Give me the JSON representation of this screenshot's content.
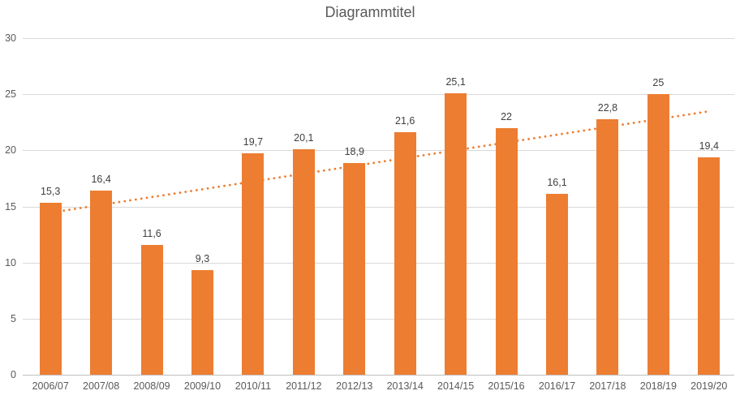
{
  "chart_data": {
    "type": "bar",
    "title": "Diagrammtitel",
    "categories": [
      "2006/07",
      "2007/08",
      "2008/09",
      "2009/10",
      "2010/11",
      "2011/12",
      "2012/13",
      "2013/14",
      "2014/15",
      "2015/16",
      "2016/17",
      "2017/18",
      "2018/19",
      "2019/20"
    ],
    "values": [
      15.3,
      16.4,
      11.6,
      9.3,
      19.7,
      20.1,
      18.9,
      21.6,
      25.1,
      22,
      16.1,
      22.8,
      25,
      19.4
    ],
    "value_labels": [
      "15,3",
      "16,4",
      "11,6",
      "9,3",
      "19,7",
      "20,1",
      "18,9",
      "21,6",
      "25,1",
      "22",
      "16,1",
      "22,8",
      "25",
      "19,4"
    ],
    "xlabel": "",
    "ylabel": "",
    "ylim": [
      0,
      30
    ],
    "yticks": [
      0,
      5,
      10,
      15,
      20,
      25,
      30
    ],
    "ytick_labels": [
      "0",
      "5",
      "10",
      "15",
      "20",
      "25",
      "30"
    ],
    "grid": true,
    "legend": "none",
    "decimal_separator": ",",
    "trendline": {
      "type": "linear",
      "style": "dotted",
      "start_value": 14.4,
      "end_value": 23.5
    },
    "colors": {
      "bar": "#ED7D31",
      "trendline": "#ED7D31",
      "gridline": "#D9D9D9",
      "axis_line": "#BFBFBF",
      "title": "#595959",
      "tick_label": "#595959",
      "data_label": "#404040",
      "background": "#FFFFFF"
    }
  }
}
